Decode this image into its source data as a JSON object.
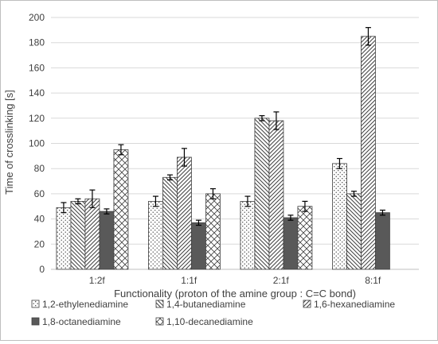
{
  "chart_data": {
    "type": "bar",
    "title": "",
    "xlabel": "Functionality (proton of the amine group : C=C bond)",
    "ylabel": "Time of crosslinking [s]",
    "ylim": [
      0,
      200
    ],
    "yticks": [
      0,
      20,
      40,
      60,
      80,
      100,
      120,
      140,
      160,
      180,
      200
    ],
    "grid": "horizontal",
    "legend": "bottom",
    "categories": [
      "1:2f",
      "1:1f",
      "2:1f",
      "8:1f"
    ],
    "series": [
      {
        "name": "1,2-ethylenediamine",
        "pattern": "dots",
        "values": [
          49,
          54,
          54,
          84
        ],
        "errors": [
          4,
          4,
          4,
          4
        ]
      },
      {
        "name": "1,4-butanediamine",
        "pattern": "back-diagonal",
        "values": [
          54,
          73,
          120,
          60
        ],
        "errors": [
          2,
          2,
          2,
          2
        ]
      },
      {
        "name": "1,6-hexanediamine",
        "pattern": "forward-diagonal",
        "values": [
          56,
          89,
          118,
          185
        ],
        "errors": [
          7,
          7,
          7,
          7
        ]
      },
      {
        "name": "1,8-octanediamine",
        "pattern": "solid-dark-gray",
        "values": [
          46,
          37,
          41,
          45
        ],
        "errors": [
          2,
          2,
          2,
          2
        ]
      },
      {
        "name": "1,10-decanediamine",
        "pattern": "crosshatch",
        "values": [
          95,
          60,
          50,
          null
        ],
        "errors": [
          4,
          4,
          4,
          null
        ]
      }
    ],
    "colors": {
      "bar_edge": "#404040",
      "solid": "#595959",
      "grid": "#d9d9d9",
      "axis": "#bfbfbf"
    }
  }
}
